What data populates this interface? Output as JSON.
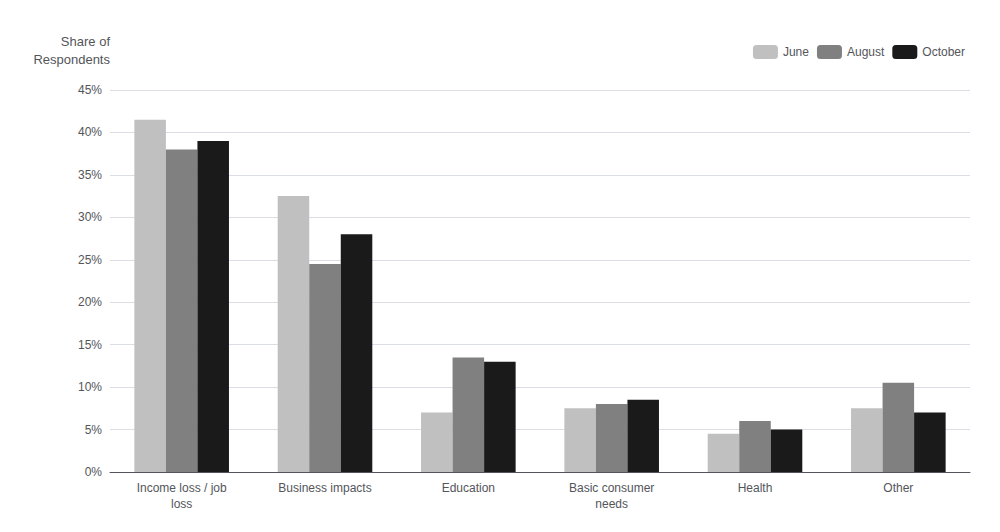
{
  "chart_data": {
    "type": "bar",
    "ylabel": "Share of\nRespondents",
    "categories": [
      "Income loss / job\nloss",
      "Business impacts",
      "Education",
      "Basic consumer\nneeds",
      "Health",
      "Other"
    ],
    "series": [
      {
        "name": "June",
        "color": "#c0c0c0",
        "values": [
          41.5,
          32.5,
          7.0,
          7.5,
          4.5,
          7.5
        ]
      },
      {
        "name": "August",
        "color": "#808080",
        "values": [
          38.0,
          24.5,
          13.5,
          8.0,
          6.0,
          10.5
        ]
      },
      {
        "name": "October",
        "color": "#1a1a1a",
        "values": [
          39.0,
          28.0,
          13.0,
          8.5,
          5.0,
          7.0
        ]
      }
    ],
    "ylim": [
      0,
      45
    ],
    "yticks": [
      {
        "value": 0,
        "label": "0%"
      },
      {
        "value": 5,
        "label": "5%"
      },
      {
        "value": 10,
        "label": "10%"
      },
      {
        "value": 15,
        "label": "15%"
      },
      {
        "value": 20,
        "label": "20%"
      },
      {
        "value": 25,
        "label": "25%"
      },
      {
        "value": 30,
        "label": "30%"
      },
      {
        "value": 35,
        "label": "35%"
      },
      {
        "value": 40,
        "label": "40%"
      },
      {
        "value": 45,
        "label": "45%"
      }
    ],
    "grid": true,
    "legend": "upper right"
  }
}
